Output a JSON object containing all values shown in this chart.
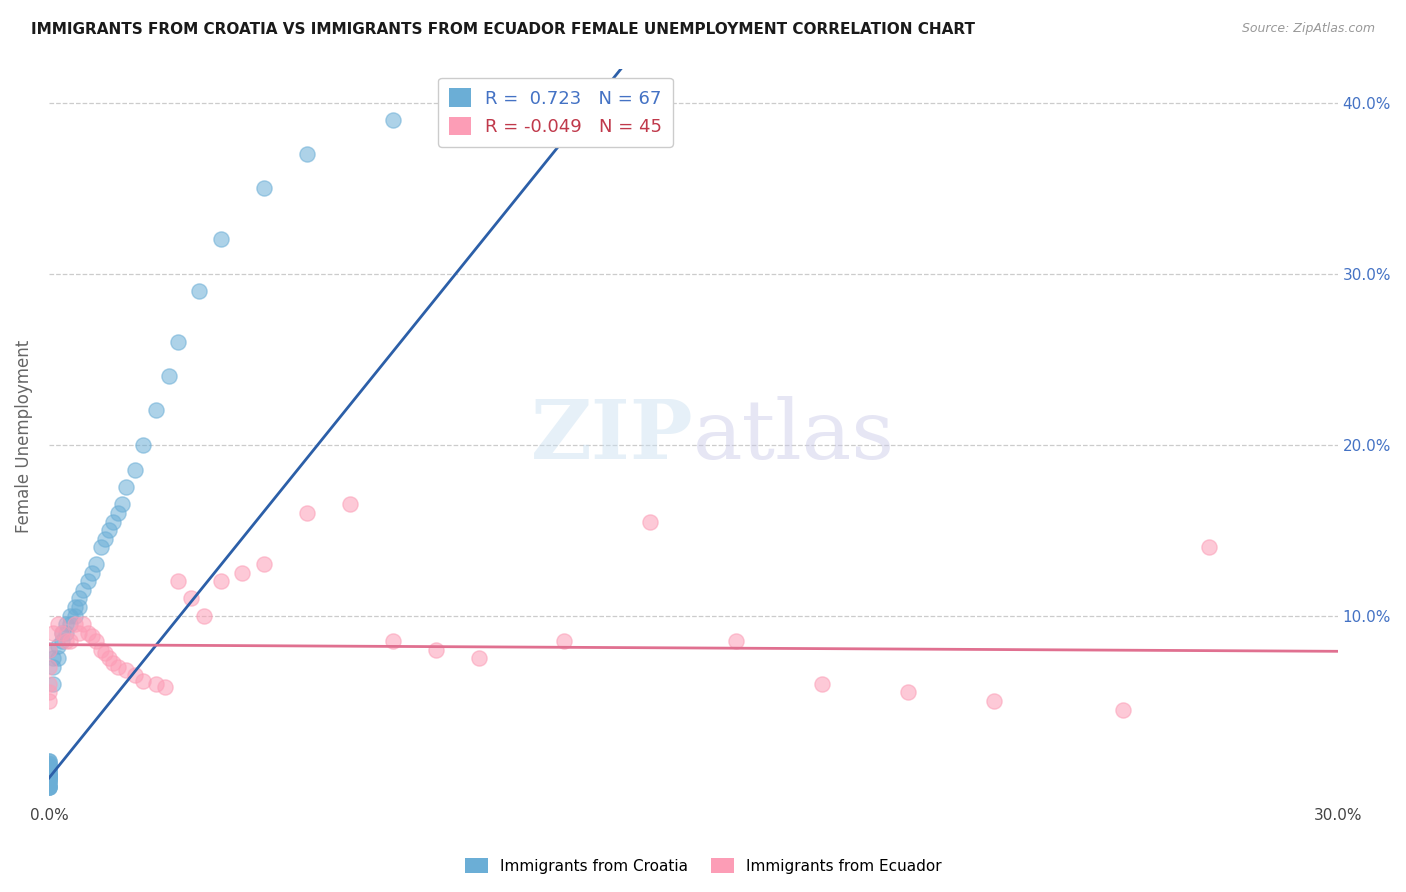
{
  "title": "IMMIGRANTS FROM CROATIA VS IMMIGRANTS FROM ECUADOR FEMALE UNEMPLOYMENT CORRELATION CHART",
  "source": "Source: ZipAtlas.com",
  "ylabel": "Female Unemployment",
  "xlim": [
    0.0,
    0.3
  ],
  "ylim": [
    -0.01,
    0.42
  ],
  "xtick_positions": [
    0.0,
    0.05,
    0.1,
    0.15,
    0.2,
    0.25,
    0.3
  ],
  "xtick_labels": [
    "0.0%",
    "",
    "",
    "",
    "",
    "",
    "30.0%"
  ],
  "ytick_positions": [
    0.0,
    0.1,
    0.2,
    0.3,
    0.4
  ],
  "ytick_labels_right": [
    "",
    "10.0%",
    "20.0%",
    "30.0%",
    "40.0%"
  ],
  "legend_labels": [
    "Immigrants from Croatia",
    "Immigrants from Ecuador"
  ],
  "r_croatia": 0.723,
  "n_croatia": 67,
  "r_ecuador": -0.049,
  "n_ecuador": 45,
  "color_croatia": "#6baed6",
  "color_ecuador": "#fc9db6",
  "line_color_croatia": "#2c5fa8",
  "line_color_ecuador": "#e07090",
  "background_color": "#ffffff",
  "croatia_x": [
    0.0,
    0.0,
    0.0,
    0.0,
    0.0,
    0.0,
    0.0,
    0.0,
    0.0,
    0.0,
    0.0,
    0.0,
    0.0,
    0.0,
    0.0,
    0.0,
    0.0,
    0.0,
    0.0,
    0.0,
    0.0,
    0.0,
    0.0,
    0.0,
    0.0,
    0.0,
    0.0,
    0.0,
    0.0,
    0.0,
    0.001,
    0.001,
    0.001,
    0.002,
    0.002,
    0.003,
    0.003,
    0.004,
    0.004,
    0.005,
    0.005,
    0.006,
    0.006,
    0.007,
    0.007,
    0.008,
    0.009,
    0.01,
    0.011,
    0.012,
    0.013,
    0.014,
    0.015,
    0.016,
    0.017,
    0.018,
    0.02,
    0.022,
    0.025,
    0.028,
    0.03,
    0.035,
    0.04,
    0.05,
    0.06,
    0.08,
    0.13
  ],
  "croatia_y": [
    0.0,
    0.0,
    0.0,
    0.0,
    0.001,
    0.002,
    0.003,
    0.003,
    0.004,
    0.005,
    0.005,
    0.005,
    0.006,
    0.006,
    0.007,
    0.007,
    0.007,
    0.008,
    0.008,
    0.009,
    0.01,
    0.01,
    0.01,
    0.012,
    0.012,
    0.013,
    0.014,
    0.015,
    0.015,
    0.08,
    0.06,
    0.07,
    0.075,
    0.075,
    0.082,
    0.085,
    0.09,
    0.09,
    0.095,
    0.095,
    0.1,
    0.1,
    0.105,
    0.105,
    0.11,
    0.115,
    0.12,
    0.125,
    0.13,
    0.14,
    0.145,
    0.15,
    0.155,
    0.16,
    0.165,
    0.175,
    0.185,
    0.2,
    0.22,
    0.24,
    0.26,
    0.29,
    0.32,
    0.35,
    0.37,
    0.39,
    0.41
  ],
  "ecuador_x": [
    0.0,
    0.0,
    0.0,
    0.0,
    0.0,
    0.001,
    0.002,
    0.003,
    0.004,
    0.005,
    0.006,
    0.007,
    0.008,
    0.009,
    0.01,
    0.011,
    0.012,
    0.013,
    0.014,
    0.015,
    0.016,
    0.018,
    0.02,
    0.022,
    0.025,
    0.027,
    0.03,
    0.033,
    0.036,
    0.04,
    0.045,
    0.05,
    0.06,
    0.07,
    0.08,
    0.09,
    0.1,
    0.12,
    0.14,
    0.16,
    0.18,
    0.2,
    0.22,
    0.25,
    0.27
  ],
  "ecuador_y": [
    0.08,
    0.07,
    0.06,
    0.055,
    0.05,
    0.09,
    0.095,
    0.09,
    0.085,
    0.085,
    0.095,
    0.09,
    0.095,
    0.09,
    0.088,
    0.085,
    0.08,
    0.078,
    0.075,
    0.072,
    0.07,
    0.068,
    0.065,
    0.062,
    0.06,
    0.058,
    0.12,
    0.11,
    0.1,
    0.12,
    0.125,
    0.13,
    0.16,
    0.165,
    0.085,
    0.08,
    0.075,
    0.085,
    0.155,
    0.085,
    0.06,
    0.055,
    0.05,
    0.045,
    0.14
  ]
}
